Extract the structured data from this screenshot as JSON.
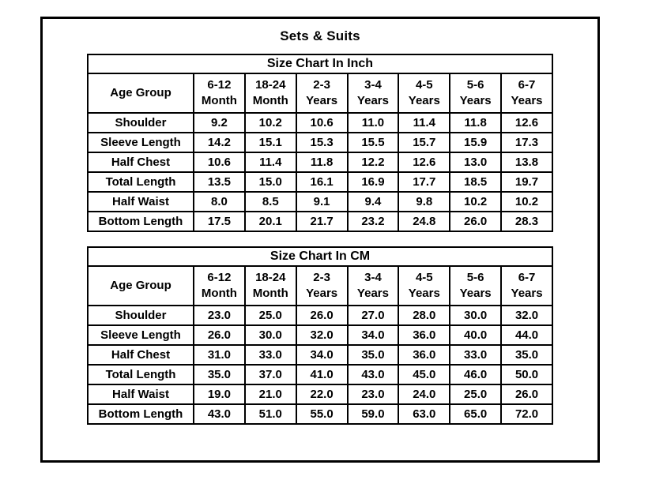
{
  "page": {
    "title": "Sets & Suits"
  },
  "colors": {
    "border": "#000000",
    "background": "#ffffff",
    "text": "#000000"
  },
  "tables": [
    {
      "title": "Size Chart In Inch",
      "corner_label": "Age Group",
      "age_columns": [
        "6-12\nMonth",
        "18-24\nMonth",
        "2-3\nYears",
        "3-4\nYears",
        "4-5\nYears",
        "5-6\nYears",
        "6-7\nYears"
      ],
      "rows": [
        {
          "label": "Shoulder",
          "values": [
            "9.2",
            "10.2",
            "10.6",
            "11.0",
            "11.4",
            "11.8",
            "12.6"
          ]
        },
        {
          "label": "Sleeve Length",
          "values": [
            "14.2",
            "15.1",
            "15.3",
            "15.5",
            "15.7",
            "15.9",
            "17.3"
          ]
        },
        {
          "label": "Half Chest",
          "values": [
            "10.6",
            "11.4",
            "11.8",
            "12.2",
            "12.6",
            "13.0",
            "13.8"
          ]
        },
        {
          "label": "Total Length",
          "values": [
            "13.5",
            "15.0",
            "16.1",
            "16.9",
            "17.7",
            "18.5",
            "19.7"
          ]
        },
        {
          "label": "Half Waist",
          "values": [
            "8.0",
            "8.5",
            "9.1",
            "9.4",
            "9.8",
            "10.2",
            "10.2"
          ]
        },
        {
          "label": "Bottom Length",
          "values": [
            "17.5",
            "20.1",
            "21.7",
            "23.2",
            "24.8",
            "26.0",
            "28.3"
          ]
        }
      ]
    },
    {
      "title": "Size Chart In CM",
      "corner_label": "Age Group",
      "age_columns": [
        "6-12\nMonth",
        "18-24\nMonth",
        "2-3\nYears",
        "3-4\nYears",
        "4-5\nYears",
        "5-6\nYears",
        "6-7\nYears"
      ],
      "rows": [
        {
          "label": "Shoulder",
          "values": [
            "23.0",
            "25.0",
            "26.0",
            "27.0",
            "28.0",
            "30.0",
            "32.0"
          ]
        },
        {
          "label": "Sleeve Length",
          "values": [
            "26.0",
            "30.0",
            "32.0",
            "34.0",
            "36.0",
            "40.0",
            "44.0"
          ]
        },
        {
          "label": "Half Chest",
          "values": [
            "31.0",
            "33.0",
            "34.0",
            "35.0",
            "36.0",
            "33.0",
            "35.0"
          ]
        },
        {
          "label": "Total Length",
          "values": [
            "35.0",
            "37.0",
            "41.0",
            "43.0",
            "45.0",
            "46.0",
            "50.0"
          ]
        },
        {
          "label": "Half Waist",
          "values": [
            "19.0",
            "21.0",
            "22.0",
            "23.0",
            "24.0",
            "25.0",
            "26.0"
          ]
        },
        {
          "label": "Bottom Length",
          "values": [
            "43.0",
            "51.0",
            "55.0",
            "59.0",
            "63.0",
            "65.0",
            "72.0"
          ]
        }
      ]
    }
  ]
}
